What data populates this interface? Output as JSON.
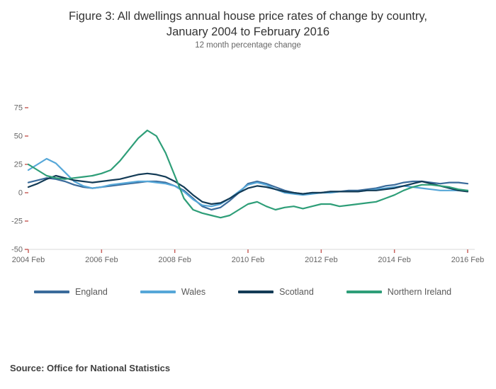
{
  "header": {
    "title_line1": "Figure 3: All dwellings annual house price rates of change by country,",
    "title_line2": "January 2004 to February 2016",
    "subtitle": "12 month percentage change"
  },
  "footer": {
    "source": "Source: Office for National Statistics"
  },
  "chart_data": {
    "type": "line",
    "title": "Figure 3: All dwellings annual house price rates of change by country, January 2004 to February 2016",
    "subtitle": "12 month percentage change",
    "ylabel": "12 month percentage change",
    "xlabel": "",
    "ylim": [
      -50,
      75
    ],
    "yticks": [
      75,
      50,
      25,
      0,
      -25,
      -50
    ],
    "x_tick_labels": [
      "2004 Feb",
      "2006 Feb",
      "2008 Feb",
      "2010 Feb",
      "2012 Feb",
      "2014 Feb",
      "2016 Feb"
    ],
    "x_tick_indices": [
      0,
      8,
      16,
      24,
      32,
      40,
      48
    ],
    "grid": false,
    "legend_position": "bottom",
    "axis_color": "#d9d9d9",
    "tick_color": "#c9625e",
    "label_color": "#666666",
    "categories": [
      "2004 Feb",
      "2004 May",
      "2004 Aug",
      "2004 Nov",
      "2005 Feb",
      "2005 May",
      "2005 Aug",
      "2005 Nov",
      "2006 Feb",
      "2006 May",
      "2006 Aug",
      "2006 Nov",
      "2007 Feb",
      "2007 May",
      "2007 Aug",
      "2007 Nov",
      "2008 Feb",
      "2008 May",
      "2008 Aug",
      "2008 Nov",
      "2009 Feb",
      "2009 May",
      "2009 Aug",
      "2009 Nov",
      "2010 Feb",
      "2010 May",
      "2010 Aug",
      "2010 Nov",
      "2011 Feb",
      "2011 May",
      "2011 Aug",
      "2011 Nov",
      "2012 Feb",
      "2012 May",
      "2012 Aug",
      "2012 Nov",
      "2013 Feb",
      "2013 May",
      "2013 Aug",
      "2013 Nov",
      "2014 Feb",
      "2014 May",
      "2014 Aug",
      "2014 Nov",
      "2015 Feb",
      "2015 May",
      "2015 Aug",
      "2015 Nov",
      "2016 Feb"
    ],
    "series": [
      {
        "name": "England",
        "color": "#3a6b9b",
        "values": [
          9,
          11,
          13,
          12,
          10,
          7,
          5,
          4,
          5,
          6,
          7,
          8,
          9,
          10,
          10,
          9,
          6,
          2,
          -5,
          -12,
          -15,
          -13,
          -7,
          0,
          8,
          10,
          8,
          5,
          2,
          0,
          -1,
          0,
          0,
          1,
          1,
          2,
          2,
          3,
          4,
          6,
          7,
          9,
          10,
          10,
          9,
          8,
          9,
          9,
          8
        ]
      },
      {
        "name": "Wales",
        "color": "#56a7d8",
        "values": [
          20,
          25,
          30,
          26,
          18,
          10,
          6,
          4,
          5,
          7,
          8,
          9,
          10,
          10,
          9,
          8,
          6,
          1,
          -6,
          -11,
          -12,
          -10,
          -5,
          1,
          7,
          9,
          7,
          3,
          0,
          -1,
          -2,
          -1,
          0,
          0,
          1,
          1,
          1,
          2,
          3,
          4,
          5,
          6,
          5,
          4,
          3,
          2,
          2,
          2,
          2
        ]
      },
      {
        "name": "Scotland",
        "color": "#133b56",
        "values": [
          5,
          8,
          12,
          15,
          13,
          11,
          10,
          9,
          10,
          11,
          12,
          14,
          16,
          17,
          16,
          14,
          10,
          5,
          -2,
          -8,
          -10,
          -9,
          -5,
          0,
          4,
          6,
          5,
          3,
          1,
          0,
          -1,
          0,
          0,
          1,
          1,
          1,
          1,
          2,
          2,
          3,
          4,
          6,
          8,
          10,
          8,
          6,
          4,
          2,
          1
        ]
      },
      {
        "name": "Northern Ireland",
        "color": "#2e9e78",
        "values": [
          25,
          20,
          15,
          13,
          12,
          13,
          14,
          15,
          17,
          20,
          28,
          38,
          48,
          55,
          50,
          35,
          15,
          -5,
          -15,
          -18,
          -20,
          -22,
          -20,
          -15,
          -10,
          -8,
          -12,
          -15,
          -13,
          -12,
          -14,
          -12,
          -10,
          -10,
          -12,
          -11,
          -10,
          -9,
          -8,
          -5,
          -2,
          2,
          5,
          7,
          7,
          6,
          5,
          3,
          2
        ]
      }
    ]
  }
}
